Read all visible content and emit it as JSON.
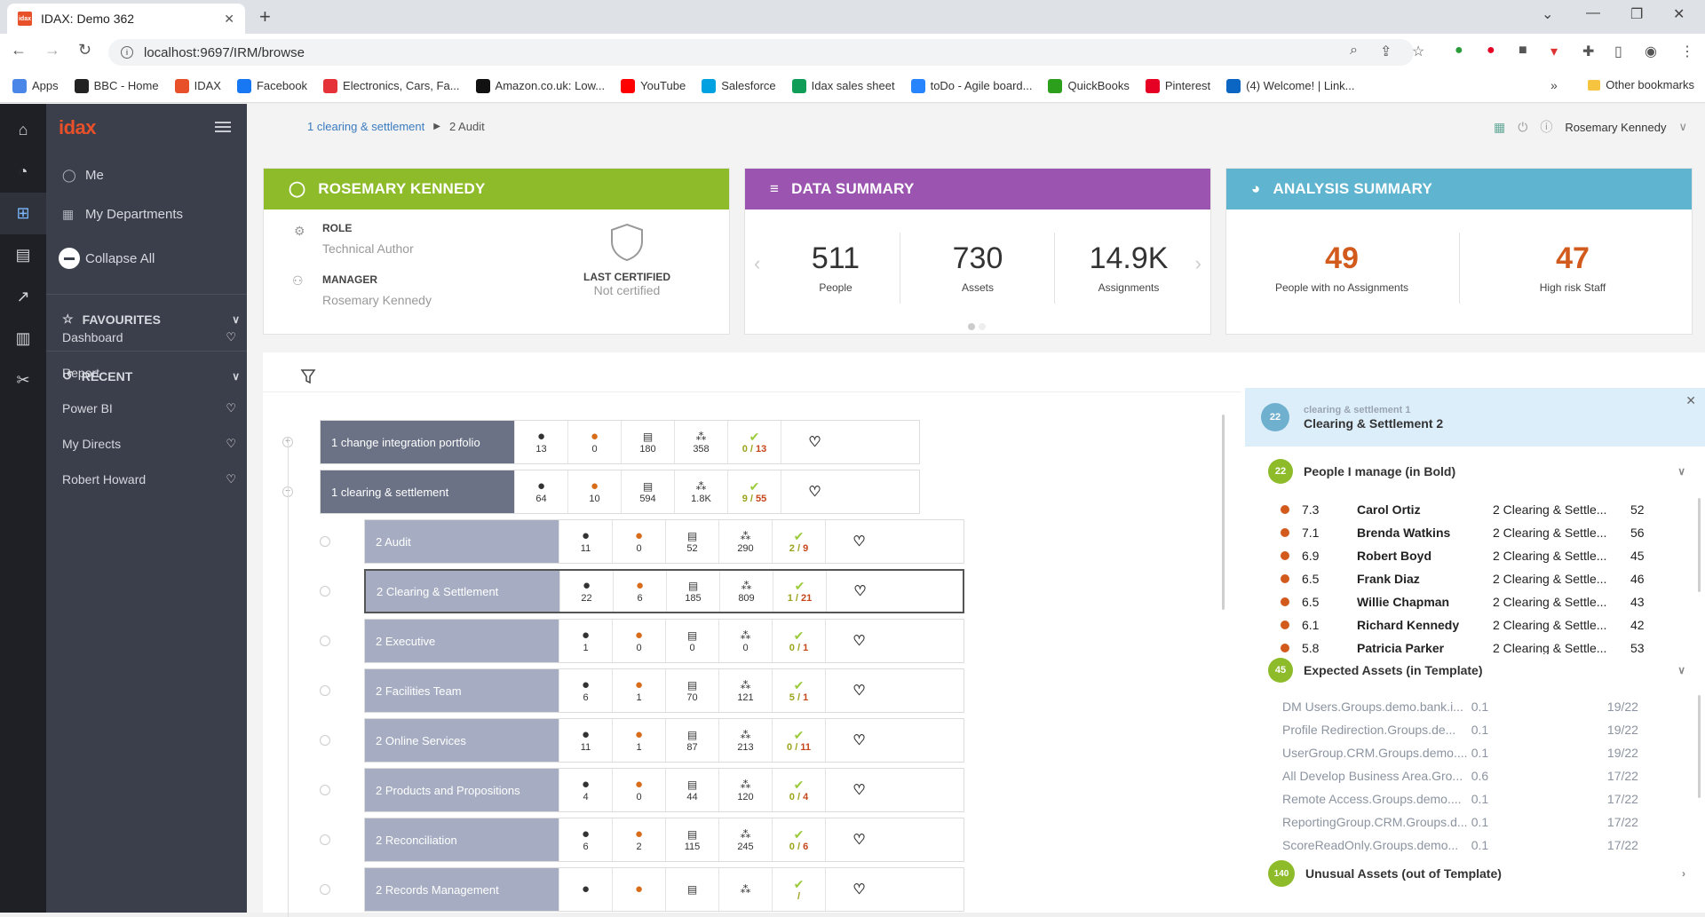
{
  "browser": {
    "tab_title": "IDAX: Demo 362",
    "tab_favicon": "idax",
    "url": "localhost:9697/IRM/browse",
    "bookmarks": [
      {
        "label": "Apps",
        "color": "#4a86e8"
      },
      {
        "label": "BBC - Home",
        "color": "#222222"
      },
      {
        "label": "IDAX",
        "color": "#e8502a"
      },
      {
        "label": "Facebook",
        "color": "#1877f2"
      },
      {
        "label": "Electronics, Cars, Fa...",
        "color": "#e53238"
      },
      {
        "label": "Amazon.co.uk: Low...",
        "color": "#111111"
      },
      {
        "label": "YouTube",
        "color": "#ff0000"
      },
      {
        "label": "Salesforce",
        "color": "#00a1e0"
      },
      {
        "label": "Idax sales sheet",
        "color": "#0f9d58"
      },
      {
        "label": "toDo - Agile board...",
        "color": "#2684ff"
      },
      {
        "label": "QuickBooks",
        "color": "#2ca01c"
      },
      {
        "label": "Pinterest",
        "color": "#e60023"
      },
      {
        "label": "(4) Welcome! | Link...",
        "color": "#0a66c2"
      }
    ],
    "more": "»",
    "other_bookmarks": "Other bookmarks"
  },
  "sidebar": {
    "logo": "idax",
    "me": "Me",
    "my_departments": "My Departments",
    "collapse_all": "Collapse All",
    "favourites": "FAVOURITES",
    "recent": "RECENT",
    "recent_items": [
      {
        "label": "Dashboard",
        "fav": true
      },
      {
        "label": "Report",
        "fav": false
      },
      {
        "label": "Power BI",
        "fav": true
      },
      {
        "label": "My Directs",
        "fav": true
      },
      {
        "label": "Robert Howard",
        "fav": true
      }
    ]
  },
  "breadcrumb": {
    "parent": "1 clearing & settlement",
    "current": "2 Audit"
  },
  "user_menu": {
    "name": "Rosemary Kennedy"
  },
  "person_card": {
    "title": "ROSEMARY KENNEDY",
    "color": "#8dbb2a",
    "role_label": "ROLE",
    "role_value": "Technical Author",
    "manager_label": "MANAGER",
    "manager_value": "Rosemary Kennedy",
    "cert_label": "LAST CERTIFIED",
    "cert_value": "Not certified"
  },
  "data_summary": {
    "title": "DATA SUMMARY",
    "color": "#9b55b0",
    "people": "511",
    "people_label": "People",
    "assets": "730",
    "assets_label": "Assets",
    "assignments": "14.9K",
    "assignments_label": "Assignments"
  },
  "analysis_summary": {
    "title": "ANALYSIS SUMMARY",
    "color": "#5fb4cf",
    "no_assign": "49",
    "no_assign_label": "People with no Assignments",
    "high_risk": "47",
    "high_risk_label": "High risk Staff"
  },
  "tree": {
    "level1": [
      {
        "name": "1 change integration portfolio",
        "people": "13",
        "risk": "0",
        "docs": "180",
        "groups": "358",
        "cert_a": "0",
        "cert_b": "13",
        "toggle": "+"
      },
      {
        "name": "1 clearing & settlement",
        "people": "64",
        "risk": "10",
        "docs": "594",
        "groups": "1.8K",
        "cert_a": "9",
        "cert_b": "55",
        "toggle": "−"
      }
    ],
    "level2": [
      {
        "name": "2 Audit",
        "people": "11",
        "risk": "0",
        "docs": "52",
        "groups": "290",
        "cert_a": "2",
        "cert_b": "9"
      },
      {
        "name": "2 Clearing & Settlement",
        "people": "22",
        "risk": "6",
        "docs": "185",
        "groups": "809",
        "cert_a": "1",
        "cert_b": "21"
      },
      {
        "name": "2 Executive",
        "people": "1",
        "risk": "0",
        "docs": "0",
        "groups": "0",
        "cert_a": "0",
        "cert_b": "1"
      },
      {
        "name": "2 Facilities Team",
        "people": "6",
        "risk": "1",
        "docs": "70",
        "groups": "121",
        "cert_a": "5",
        "cert_b": "1"
      },
      {
        "name": "2 Online Services",
        "people": "11",
        "risk": "1",
        "docs": "87",
        "groups": "213",
        "cert_a": "0",
        "cert_b": "11"
      },
      {
        "name": "2 Products and Propositions",
        "people": "4",
        "risk": "0",
        "docs": "44",
        "groups": "120",
        "cert_a": "0",
        "cert_b": "4"
      },
      {
        "name": "2 Reconciliation",
        "people": "6",
        "risk": "2",
        "docs": "115",
        "groups": "245",
        "cert_a": "0",
        "cert_b": "6"
      },
      {
        "name": "2 Records Management",
        "people": "",
        "risk": "",
        "docs": "",
        "groups": "",
        "cert_a": "",
        "cert_b": ""
      }
    ]
  },
  "detail": {
    "badge": "22",
    "subtitle": "clearing & settlement 1",
    "title": "Clearing & Settlement 2",
    "people_badge": "22",
    "people_title": "People I manage (in Bold)",
    "people": [
      {
        "score": "7.3",
        "name": "Carol Ortiz",
        "dept": "2 Clearing & Settle...",
        "n": "52"
      },
      {
        "score": "7.1",
        "name": "Brenda Watkins",
        "dept": "2 Clearing & Settle...",
        "n": "56"
      },
      {
        "score": "6.9",
        "name": "Robert Boyd",
        "dept": "2 Clearing & Settle...",
        "n": "45"
      },
      {
        "score": "6.5",
        "name": "Frank Diaz",
        "dept": "2 Clearing & Settle...",
        "n": "46"
      },
      {
        "score": "6.5",
        "name": "Willie Chapman",
        "dept": "2 Clearing & Settle...",
        "n": "43"
      },
      {
        "score": "6.1",
        "name": "Richard Kennedy",
        "dept": "2 Clearing & Settle...",
        "n": "42"
      },
      {
        "score": "5.8",
        "name": "Patricia Parker",
        "dept": "2 Clearing & Settle...",
        "n": "53"
      }
    ],
    "assets_badge": "45",
    "assets_title": "Expected Assets (in Template)",
    "assets": [
      {
        "name": "DM Users.Groups.demo.bank.i...",
        "v": "0.1",
        "r": "19/22"
      },
      {
        "name": "Profile Redirection.Groups.de...",
        "v": "0.1",
        "r": "19/22"
      },
      {
        "name": "UserGroup.CRM.Groups.demo....",
        "v": "0.1",
        "r": "19/22"
      },
      {
        "name": "All Develop Business Area.Gro...",
        "v": "0.6",
        "r": "17/22"
      },
      {
        "name": "Remote Access.Groups.demo....",
        "v": "0.1",
        "r": "17/22"
      },
      {
        "name": "ReportingGroup.CRM.Groups.d...",
        "v": "0.1",
        "r": "17/22"
      },
      {
        "name": "ScoreReadOnly.Groups.demo...",
        "v": "0.1",
        "r": "17/22"
      }
    ],
    "unusual_badge": "140",
    "unusual_title": "Unusual Assets (out of Template)"
  }
}
